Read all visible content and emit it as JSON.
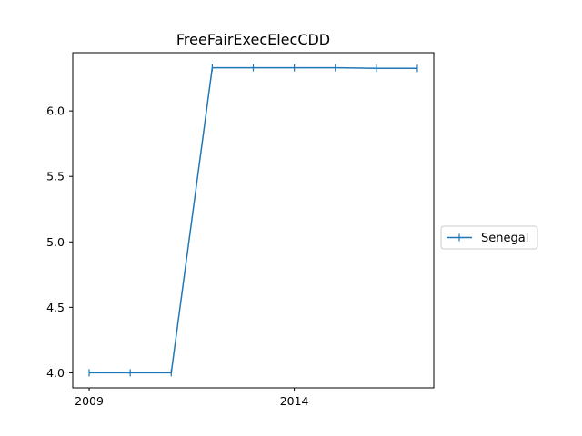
{
  "chart_data": {
    "type": "line",
    "title": "FreeFairExecElecCDD",
    "xlabel": "",
    "ylabel": "",
    "x": [
      2009,
      2010,
      2011,
      2012,
      2013,
      2014,
      2015,
      2016,
      2017
    ],
    "x_ticks": [
      2009,
      2014
    ],
    "y_ticks": [
      4.0,
      4.5,
      5.0,
      5.5,
      6.0
    ],
    "y_tick_labels": [
      "4.0",
      "4.5",
      "5.0",
      "5.5",
      "6.0"
    ],
    "xlim": [
      2008.6,
      2017.4
    ],
    "ylim": [
      3.885,
      6.445
    ],
    "grid": false,
    "legend_position": "right",
    "series": [
      {
        "name": "Senegal",
        "color": "#1f77b4",
        "marker": "vline",
        "values": [
          4.0,
          4.0,
          4.0,
          6.33,
          6.33,
          6.33,
          6.33,
          6.325,
          6.325
        ]
      }
    ]
  }
}
